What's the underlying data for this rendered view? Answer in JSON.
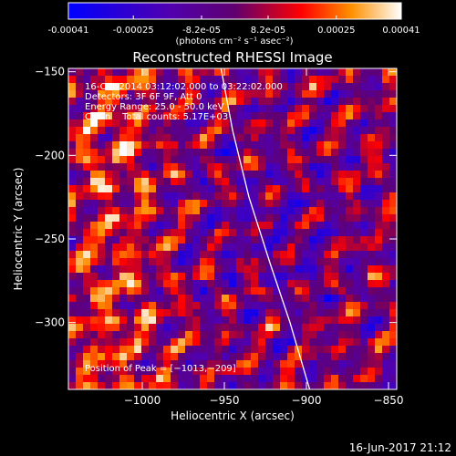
{
  "colorbar": {
    "tick_labels": [
      "-0.00041",
      "-0.00025",
      "-8.2e-05",
      "8.2e-05",
      "0.00025",
      "0.00041"
    ],
    "tick_values": [
      -0.00041,
      -0.00025,
      -8.2e-05,
      8.2e-05,
      0.00025,
      0.00041
    ],
    "range": [
      -0.00041,
      0.00041
    ],
    "units": "(photons cm⁻² s⁻¹ asec⁻²)"
  },
  "chart_data": {
    "type": "heatmap",
    "title": "Reconstructed RHESSI Image",
    "xlabel": "Heliocentric X (arcsec)",
    "ylabel": "Heliocentric Y (arcsec)",
    "xlim": [
      -1045,
      -845
    ],
    "ylim": [
      -340,
      -148
    ],
    "x_ticks": [
      -1000,
      -950,
      -900,
      -850
    ],
    "x_tick_labels": [
      "−1000",
      "−950",
      "−900",
      "−850"
    ],
    "y_ticks": [
      -150,
      -200,
      -250,
      -300
    ],
    "y_tick_labels": [
      "−150",
      "−200",
      "−250",
      "−300"
    ],
    "limb_line": [
      {
        "x": -952,
        "y": -148
      },
      {
        "x": -945,
        "y": -185
      },
      {
        "x": -935,
        "y": -225
      },
      {
        "x": -922,
        "y": -265
      },
      {
        "x": -910,
        "y": -300
      },
      {
        "x": -898,
        "y": -340
      }
    ],
    "peak": {
      "x": -1013,
      "y": -209
    },
    "colors": {
      "neg_max": "#1010ff",
      "zero": "#5a1aa0",
      "mid": "#ff2000",
      "pos_max": "#ffffff"
    }
  },
  "annotations": [
    "16-Oct-2014 03:12:02.000 to 03:22:02.000",
    "Detectors: 3F 6F 9F, Att 0",
    "Energy Range: 25.0 - 50.0 keV",
    "Clean    Total counts: 5.17E+03"
  ],
  "peak_text": "Position of Peak = [−1013,−209]",
  "footer_date": "16-Jun-2017 21:12"
}
